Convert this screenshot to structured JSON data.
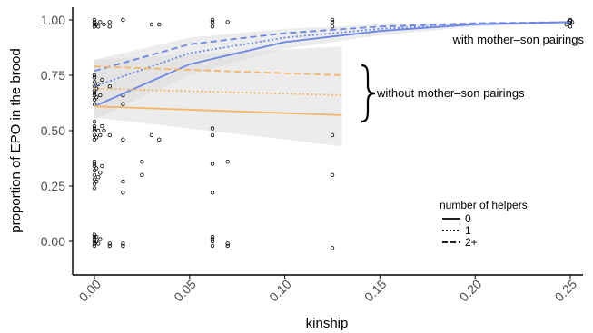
{
  "chart_data": {
    "type": "scatter",
    "xlabel": "kinship",
    "ylabel": "proportion of EPO in the brood",
    "xlim": [
      0,
      0.25
    ],
    "ylim": [
      0,
      1
    ],
    "x_ticks": [
      "0.00",
      "0.05",
      "0.10",
      "0.15",
      "0.20",
      "0.25"
    ],
    "y_ticks": [
      "0.00",
      "0.25",
      "0.50",
      "0.75",
      "1.00"
    ],
    "grid": false,
    "colors": {
      "with_pairings": "#6b86e3",
      "without_pairings": "#f5b566",
      "ribbon": "#d9d9d9",
      "points": "#000000"
    },
    "annotations": [
      {
        "text": "with mother–son pairings"
      },
      {
        "text": "without mother–son pairings"
      }
    ],
    "legend": {
      "title": "number of helpers",
      "entries": [
        "0",
        "1",
        "2+"
      ],
      "position": "bottom-right"
    },
    "series": [
      {
        "group": "with mother–son pairings",
        "helpers": "0",
        "line_style": "solid",
        "x": [
          0,
          0.05,
          0.1,
          0.15,
          0.2,
          0.25
        ],
        "y": [
          0.61,
          0.8,
          0.9,
          0.95,
          0.98,
          0.99
        ]
      },
      {
        "group": "with mother–son pairings",
        "helpers": "1",
        "line_style": "dotted",
        "x": [
          0,
          0.05,
          0.1,
          0.15,
          0.2,
          0.25
        ],
        "y": [
          0.7,
          0.85,
          0.92,
          0.96,
          0.98,
          0.99
        ]
      },
      {
        "group": "with mother–son pairings",
        "helpers": "2+",
        "line_style": "dashed",
        "x": [
          0,
          0.05,
          0.1,
          0.15,
          0.2,
          0.25
        ],
        "y": [
          0.77,
          0.89,
          0.94,
          0.97,
          0.985,
          0.99
        ]
      },
      {
        "group": "without mother–son pairings",
        "helpers": "0",
        "line_style": "solid",
        "x": [
          0,
          0.13
        ],
        "y": [
          0.61,
          0.57
        ]
      },
      {
        "group": "without mother–son pairings",
        "helpers": "1",
        "line_style": "dotted",
        "x": [
          0,
          0.13
        ],
        "y": [
          0.69,
          0.66
        ]
      },
      {
        "group": "without mother–son pairings",
        "helpers": "2+",
        "line_style": "dashed",
        "x": [
          0,
          0.13
        ],
        "y": [
          0.79,
          0.75
        ]
      }
    ],
    "ribbons": [
      {
        "group": "with mother–son pairings",
        "x": [
          0,
          0.05,
          0.1,
          0.15,
          0.2,
          0.25
        ],
        "lower": [
          0.55,
          0.75,
          0.87,
          0.93,
          0.97,
          0.985
        ],
        "upper": [
          0.82,
          0.92,
          0.96,
          0.98,
          0.99,
          0.995
        ]
      },
      {
        "group": "without mother–son pairings",
        "x": [
          0,
          0.13
        ],
        "lower": [
          0.56,
          0.43
        ],
        "upper": [
          0.82,
          0.88
        ]
      }
    ],
    "points": [
      [
        0,
        0
      ],
      [
        0,
        0.01
      ],
      [
        0,
        0.02
      ],
      [
        0,
        0.03
      ],
      [
        0,
        -0.01
      ],
      [
        0,
        -0.02
      ],
      [
        0.001,
        0
      ],
      [
        0.001,
        0.02
      ],
      [
        0.002,
        -0.01
      ],
      [
        0.003,
        0.01
      ],
      [
        0.008,
        -0.01
      ],
      [
        0.008,
        -0.02
      ],
      [
        0.015,
        -0.01
      ],
      [
        0.015,
        -0.02
      ],
      [
        0.062,
        0
      ],
      [
        0.062,
        0.01
      ],
      [
        0.062,
        0.02
      ],
      [
        0.062,
        -0.02
      ],
      [
        0.07,
        -0.01
      ],
      [
        0.07,
        -0.02
      ],
      [
        0.125,
        -0.03
      ],
      [
        0,
        0.24
      ],
      [
        0,
        0.26
      ],
      [
        0,
        0.28
      ],
      [
        0,
        0.3
      ],
      [
        0,
        0.32
      ],
      [
        0,
        0.34
      ],
      [
        0,
        0.35
      ],
      [
        0,
        0.36
      ],
      [
        0.001,
        0.27
      ],
      [
        0.001,
        0.33
      ],
      [
        0.002,
        0.29
      ],
      [
        0.003,
        0.31
      ],
      [
        0.004,
        0.34
      ],
      [
        0.015,
        0.22
      ],
      [
        0.015,
        0.27
      ],
      [
        0.025,
        0.3
      ],
      [
        0.025,
        0.36
      ],
      [
        0.062,
        0.22
      ],
      [
        0.062,
        0.35
      ],
      [
        0.07,
        0.36
      ],
      [
        0.125,
        0.3
      ],
      [
        0,
        0.46
      ],
      [
        0,
        0.48
      ],
      [
        0,
        0.5
      ],
      [
        0,
        0.51
      ],
      [
        0,
        0.52
      ],
      [
        0,
        0.54
      ],
      [
        0.001,
        0.47
      ],
      [
        0.002,
        0.5
      ],
      [
        0.003,
        0.48
      ],
      [
        0.004,
        0.52
      ],
      [
        0.005,
        0.5
      ],
      [
        0.008,
        0.48
      ],
      [
        0.015,
        0.46
      ],
      [
        0.03,
        0.48
      ],
      [
        0.034,
        0.46
      ],
      [
        0.062,
        0.48
      ],
      [
        0.062,
        0.51
      ],
      [
        0.125,
        0.48
      ],
      [
        0,
        0.62
      ],
      [
        0,
        0.64
      ],
      [
        0,
        0.66
      ],
      [
        0,
        0.67
      ],
      [
        0,
        0.68
      ],
      [
        0,
        0.7
      ],
      [
        0,
        0.72
      ],
      [
        0,
        0.74
      ],
      [
        0,
        0.75
      ],
      [
        0.001,
        0.65
      ],
      [
        0.001,
        0.69
      ],
      [
        0.002,
        0.71
      ],
      [
        0.003,
        0.66
      ],
      [
        0.004,
        0.73
      ],
      [
        0.008,
        0.7
      ],
      [
        0.015,
        0.62
      ],
      [
        0.015,
        0.66
      ],
      [
        0,
        0.97
      ],
      [
        0,
        0.98
      ],
      [
        0,
        0.99
      ],
      [
        0,
        1.0
      ],
      [
        0.001,
        0.98
      ],
      [
        0.002,
        0.97
      ],
      [
        0.003,
        0.99
      ],
      [
        0.005,
        0.98
      ],
      [
        0.008,
        0.99
      ],
      [
        0.008,
        0.97
      ],
      [
        0.015,
        1.0
      ],
      [
        0.03,
        0.98
      ],
      [
        0.034,
        0.98
      ],
      [
        0.062,
        0.97
      ],
      [
        0.062,
        0.99
      ],
      [
        0.062,
        1.0
      ],
      [
        0.07,
        0.99
      ],
      [
        0.125,
        0.97
      ],
      [
        0.125,
        0.99
      ],
      [
        0.125,
        1.0
      ],
      [
        0.248,
        0.98
      ],
      [
        0.249,
        0.99
      ],
      [
        0.25,
        0.97
      ],
      [
        0.25,
        0.985
      ],
      [
        0.25,
        0.995
      ],
      [
        0.25,
        1.0
      ],
      [
        0.251,
        0.99
      ]
    ]
  }
}
